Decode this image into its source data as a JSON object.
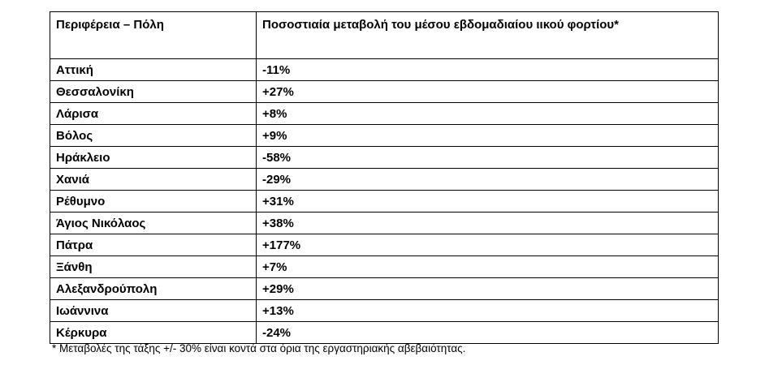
{
  "table": {
    "header": [
      "Περιφέρεια – Πόλη",
      "Ποσοστιαία μεταβολή του μέσου εβδομαδιαίου ιικού φορτίου*"
    ],
    "rows": [
      [
        "Αττική",
        "-11%"
      ],
      [
        "Θεσσαλονίκη",
        "+27%"
      ],
      [
        "Λάρισα",
        "+8%"
      ],
      [
        "Βόλος",
        "+9%"
      ],
      [
        "Ηράκλειο",
        "-58%"
      ],
      [
        "Χανιά",
        "-29%"
      ],
      [
        "Ρέθυμνο",
        "+31%"
      ],
      [
        "Άγιος Νικόλαος",
        "+38%"
      ],
      [
        "Πάτρα",
        "+177%"
      ],
      [
        "Ξάνθη",
        "+7%"
      ],
      [
        "Αλεξανδρούπολη",
        "+29%"
      ],
      [
        "Ιωάννινα",
        "+13%"
      ],
      [
        "Κέρκυρα",
        "-24%"
      ]
    ]
  },
  "footnote": "* Μεταβολές της τάξης +/- 30% είναι κοντά στα όρια της εργαστηριακής αβεβαιότητας."
}
